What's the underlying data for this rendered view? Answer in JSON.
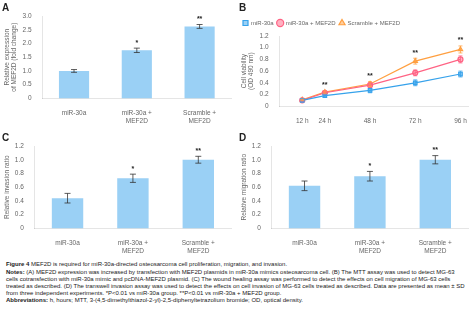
{
  "chart_data": [
    {
      "type": "bar",
      "title": "A",
      "categories": [
        "miR-30a",
        "miR-30a +\nMEF2D",
        "Scramble +\nMEF2D"
      ],
      "values": [
        1.0,
        1.75,
        2.62
      ],
      "errors": [
        0.05,
        0.08,
        0.07
      ],
      "ylabel": "Relative expression\nof MEF2D (fold change)",
      "ylim": [
        0,
        3
      ],
      "yticks": [
        0,
        0.5,
        {
          "value": 1,
          "label": "1.0"
        },
        1.5,
        {
          "value": 2,
          "label": "2.0"
        },
        2.5,
        {
          "value": 3,
          "label": "3.0"
        }
      ],
      "grid": false,
      "annotations": [
        {
          "text": "*",
          "x": "miR-30a +\nMEF2D"
        },
        {
          "text": "**",
          "x": "Scramble +\nMEF2D"
        }
      ]
    },
    {
      "type": "line",
      "title": "B",
      "x": [
        12,
        24,
        48,
        72,
        96
      ],
      "xlim": [
        0,
        100
      ],
      "xticks": [
        {
          "value": 12,
          "label": "12 h"
        },
        {
          "value": 24,
          "label": "24 h"
        },
        {
          "value": 48,
          "label": "48 h"
        },
        {
          "value": 72,
          "label": "72 h"
        },
        {
          "value": 96,
          "label": "96 h"
        }
      ],
      "ylabel": "Cell viability\n(OD 490 nm)",
      "ylim": [
        0,
        1.2
      ],
      "yticks": [
        0,
        0.2,
        0.4,
        0.6,
        0.8,
        {
          "value": 1,
          "label": "1.0"
        },
        1.2
      ],
      "series": [
        {
          "name": "miR-30a",
          "values": [
            0.1,
            0.18,
            0.27,
            0.4,
            0.55
          ],
          "errors": [
            0.01,
            0.02,
            0.04,
            0.05,
            0.05
          ],
          "marker": "square",
          "line_style": "solid"
        },
        {
          "name": "miR-30a + MEF2D",
          "values": [
            0.1,
            0.23,
            0.36,
            0.57,
            0.8
          ],
          "errors": [
            0.01,
            0.02,
            0.04,
            0.05,
            0.06
          ],
          "marker": "circle",
          "line_style": "solid"
        },
        {
          "name": "Scramble + MEF2D",
          "values": [
            0.11,
            0.24,
            0.38,
            0.77,
            0.97
          ],
          "errors": [
            0.01,
            0.02,
            0.04,
            0.05,
            0.06
          ],
          "marker": "triangle",
          "line_style": "solid"
        }
      ],
      "legend": "upper left",
      "grid": false,
      "annotations": [
        {
          "text": "**",
          "x": 24
        },
        {
          "text": "**",
          "x": 48
        },
        {
          "text": "**",
          "x": 72
        },
        {
          "text": "**",
          "x": 96
        }
      ]
    },
    {
      "type": "bar",
      "title": "C",
      "categories": [
        "miR-30a",
        "miR-30a +\nMEF2D",
        "Scramble +\nMEF2D"
      ],
      "values": [
        0.44,
        0.73,
        1.0
      ],
      "errors": [
        0.07,
        0.06,
        0.05
      ],
      "ylabel": "Relative invasion ratio",
      "ylim": [
        0,
        1.2
      ],
      "yticks": [
        0,
        0.2,
        0.4,
        0.6,
        0.8,
        {
          "value": 1,
          "label": "1.0"
        },
        1.2
      ],
      "grid": false,
      "annotations": [
        {
          "text": "*",
          "x": "miR-30a +\nMEF2D"
        },
        {
          "text": "**",
          "x": "Scramble +\nMEF2D"
        }
      ]
    },
    {
      "type": "bar",
      "title": "D",
      "categories": [
        "miR-30a",
        "miR-30a +\nMEF2D",
        "Scramble +\nMEF2D"
      ],
      "values": [
        0.62,
        0.76,
        1.0
      ],
      "errors": [
        0.07,
        0.07,
        0.06
      ],
      "ylabel": "Relative migration ratio",
      "ylim": [
        0,
        1.2
      ],
      "yticks": [
        0,
        0.2,
        0.4,
        0.6,
        0.8,
        {
          "value": 1,
          "label": "1.0"
        },
        1.2
      ],
      "grid": false,
      "annotations": [
        {
          "text": "*",
          "x": "miR-30a +\nMEF2D"
        },
        {
          "text": "**",
          "x": "Scramble +\nMEF2D"
        }
      ]
    }
  ],
  "caption": [
    [
      "Figure 4",
      "MEF2D is required for miR-30a-directed osteosarcoma cell proliferation, migration, and invasion."
    ],
    [
      "Notes:",
      "(A) MEF2D expression was increased by transfection with MEF2D plasmids in miR-30a mimics osteosarcoma cell. (B) The MTT assay was used to detect MG-63 cells cotransfection with miR-30a mimic and pcDNA-MEF2D plasmid. (C) The wound healing assay was performed to detect the effects on cell migration of MG-63 cells treated as described. (D) The transwell invasion assay was used to detect the effects on cell invasion of MG-63 cells treated as described. Data are presented as mean ± SD from three independent experiments. *P<0.01 vs miR-30a group. **P<0.01 vs miR-30a + MEF2D group."
    ],
    [
      "Abbreviations:",
      "h, hours; MTT, 3-(4,5-dimethylthiazol-2-yl)-2,5-diphenyltetrazolium bromide; OD, optical density."
    ]
  ]
}
